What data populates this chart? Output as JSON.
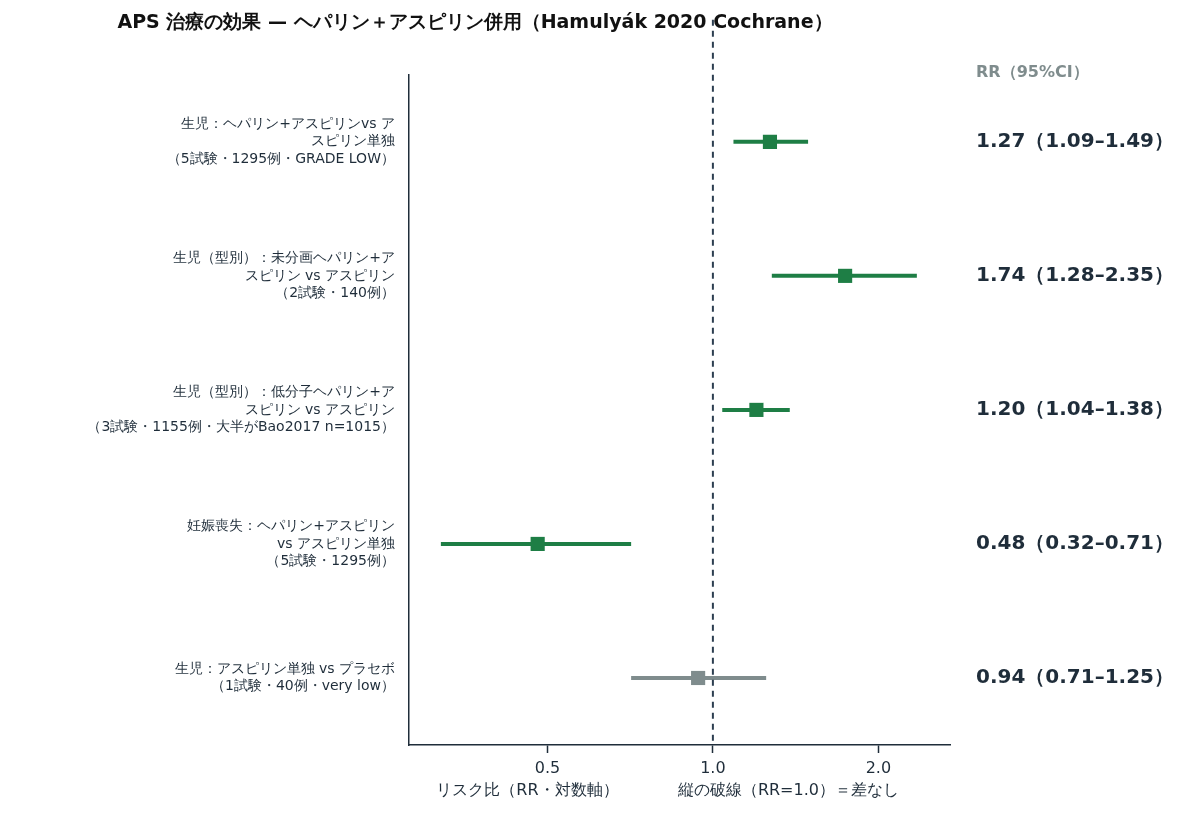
{
  "chart_data": {
    "type": "scatter",
    "orientation": "horizontal",
    "title": "APS 治療の効果 — ヘパリン＋アスピリン併用（Hamulyák 2020 Cochrane）",
    "xlabel": "リスク比（RR・対数軸）",
    "categories": [
      "生児：ヘパリン+アスピリンvs アスピリン単独（5試験・1295例・GRADE LOW）",
      "生児（型別）：未分画ヘパリン+アスピリン vs アスピリン（2試験・140例）",
      "生児（型別）：低分子ヘパリン+アスピリン vs アスピリン（3試験・1155例・大半がBao2017 n=1015）",
      "妊娠喪失：ヘパリン+アスピリンvs アスピリン単独（5試験・1295例）",
      "生児：アスピリン単独 vs プラセボ（1試験・40例・very low）"
    ],
    "values": [
      1.27,
      1.74,
      1.2,
      0.48,
      0.94
    ],
    "errors": [
      [
        1.09,
        1.49
      ],
      [
        1.28,
        2.35
      ],
      [
        1.04,
        1.38
      ],
      [
        0.32,
        0.71
      ],
      [
        0.71,
        1.25
      ]
    ],
    "colors": [
      "#1e7e45",
      "#1e7e45",
      "#1e7e45",
      "#1e7e45",
      "#7f8c8d"
    ],
    "value_labels": [
      "1.27（1.09–1.49）",
      "1.74（1.28–2.35）",
      "1.20（1.04–1.38）",
      "0.48（0.32–0.71）",
      "0.94（0.71–1.25）"
    ],
    "annotations": [
      "RR（95%CI）"
    ],
    "ref_lines": [
      {
        "axis": "x",
        "value": 1,
        "label": "縦の破線（RR=1.0）＝差なし",
        "line_style": "dashed",
        "color": "#2c3e50"
      }
    ],
    "log": "x",
    "xlim": [
      0.28,
      2.7
    ],
    "xticks": [
      0.5,
      {
        "value": 1,
        "label": "1.0"
      },
      {
        "value": 2,
        "label": "2.0"
      }
    ],
    "marker": "square",
    "grid": false,
    "legend": false
  }
}
